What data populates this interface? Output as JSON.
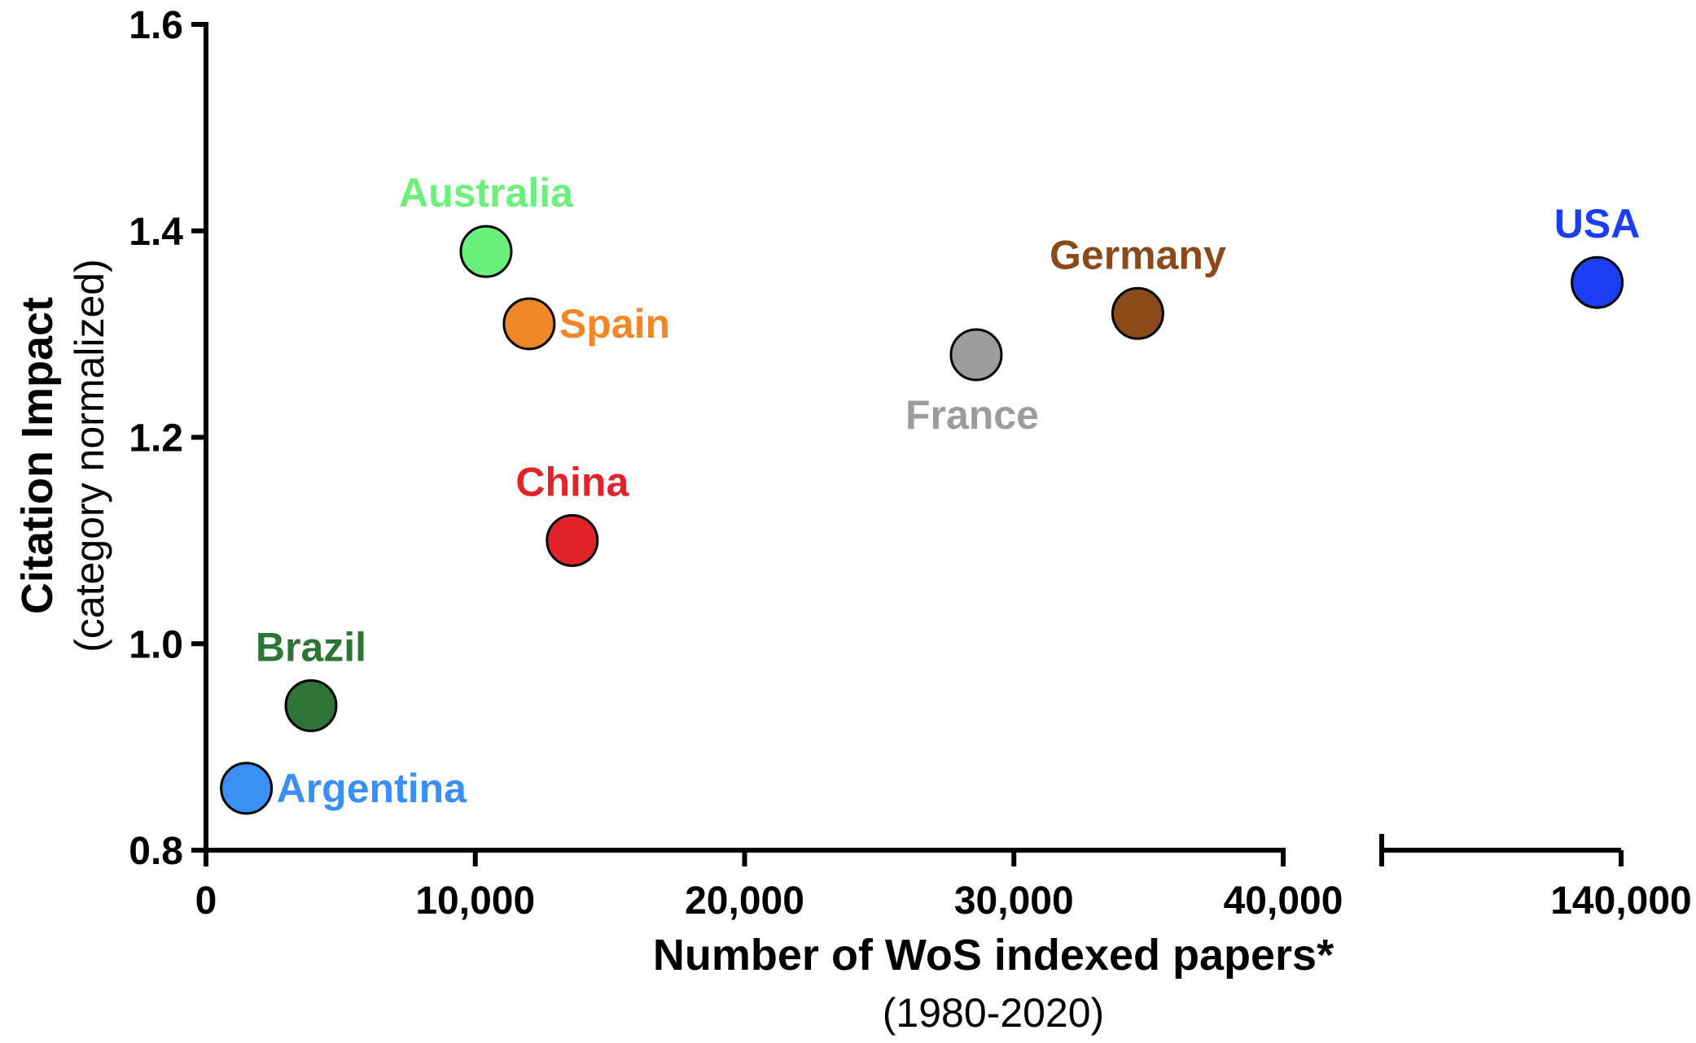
{
  "chart_data": {
    "type": "scatter",
    "title": "",
    "xlabel": "Number of WoS indexed papers*",
    "xlabel_sub": "(1980-2020)",
    "ylabel": "Citation Impact",
    "ylabel_sub": "(category normalized)",
    "xlim": [
      0,
      40000
    ],
    "xlim_break_segment": [
      130000,
      140000
    ],
    "x_axis_break": true,
    "ylim": [
      0.8,
      1.6
    ],
    "x_ticks": [
      {
        "value": 0,
        "label": "0"
      },
      {
        "value": 10000,
        "label": "10,000"
      },
      {
        "value": 20000,
        "label": "20,000"
      },
      {
        "value": 30000,
        "label": "30,000"
      },
      {
        "value": 40000,
        "label": "40,000"
      },
      {
        "value": 140000,
        "label": "140,000"
      }
    ],
    "y_ticks": [
      {
        "value": 0.8,
        "label": "0.8"
      },
      {
        "value": 1.0,
        "label": "1.0"
      },
      {
        "value": 1.2,
        "label": "1.2"
      },
      {
        "value": 1.4,
        "label": "1.4"
      },
      {
        "value": 1.6,
        "label": "1.6"
      }
    ],
    "grid": false,
    "points": [
      {
        "label": "Argentina",
        "x": 1500,
        "y": 0.86,
        "color": "#3a8ff2",
        "label_pos": "right"
      },
      {
        "label": "Brazil",
        "x": 3900,
        "y": 0.94,
        "color": "#2e7436",
        "label_pos": "above"
      },
      {
        "label": "Australia",
        "x": 10400,
        "y": 1.38,
        "color": "#6cf07c",
        "label_pos": "above"
      },
      {
        "label": "Spain",
        "x": 12000,
        "y": 1.31,
        "color": "#f0882a",
        "label_pos": "right"
      },
      {
        "label": "China",
        "x": 13600,
        "y": 1.1,
        "color": "#e1242a",
        "label_pos": "above"
      },
      {
        "label": "France",
        "x": 28600,
        "y": 1.28,
        "color": "#9c9c9c",
        "label_pos": "below"
      },
      {
        "label": "Germany",
        "x": 34600,
        "y": 1.32,
        "color": "#8a4a1a",
        "label_pos": "above"
      },
      {
        "label": "USA",
        "x": 139000,
        "y": 1.35,
        "color": "#1b3ef4",
        "label_pos": "above"
      }
    ]
  }
}
